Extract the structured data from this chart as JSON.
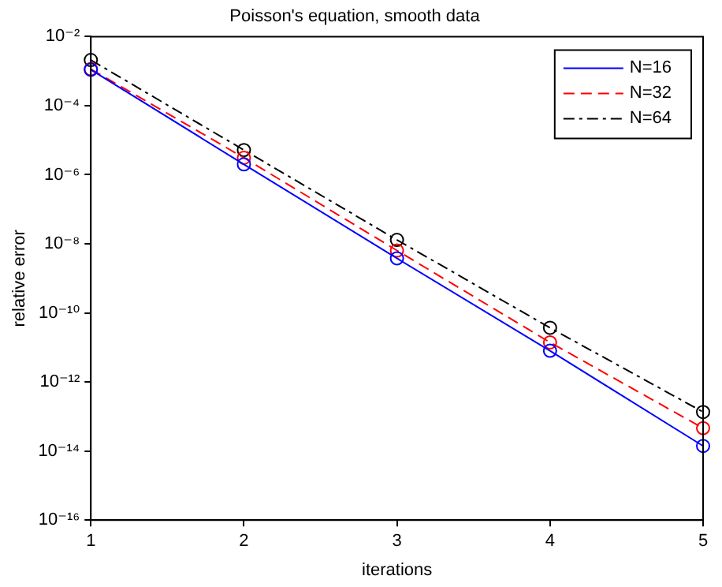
{
  "chart_data": {
    "type": "line",
    "title": "Poisson's equation, smooth data",
    "xlabel": "iterations",
    "ylabel": "relative error",
    "x": [
      1,
      2,
      3,
      4,
      5
    ],
    "series": [
      {
        "name": "N=16",
        "color": "#0000ff",
        "line_style": "solid",
        "values": [
          0.0011,
          2e-06,
          3.8e-09,
          8e-12,
          1.4e-14
        ]
      },
      {
        "name": "N=32",
        "color": "#ff0000",
        "line_style": "dashed",
        "values": [
          0.00115,
          3.1e-06,
          6.4e-09,
          1.4e-11,
          4.6e-14
        ]
      },
      {
        "name": "N=64",
        "color": "#000000",
        "line_style": "dashdot",
        "values": [
          0.0021,
          5.2e-06,
          1.3e-08,
          3.7e-11,
          1.35e-13
        ]
      }
    ],
    "marker": "circle",
    "log": "y",
    "grid": false,
    "legend": "top right",
    "xlim": [
      1,
      5
    ],
    "xticks": [
      1,
      2,
      3,
      4,
      5
    ],
    "ylim": [
      1e-16,
      0.01
    ],
    "yticks": [
      {
        "value": 1e-16,
        "label": "10⁻¹⁶"
      },
      {
        "value": 1e-14,
        "label": "10⁻¹⁴"
      },
      {
        "value": 1e-12,
        "label": "10⁻¹²"
      },
      {
        "value": 1e-10,
        "label": "10⁻¹⁰"
      },
      {
        "value": 1e-08,
        "label": "10⁻⁸"
      },
      {
        "value": 1e-06,
        "label": "10⁻⁶"
      },
      {
        "value": 0.0001,
        "label": "10⁻⁴"
      },
      {
        "value": 0.01,
        "label": "10⁻²"
      }
    ]
  }
}
